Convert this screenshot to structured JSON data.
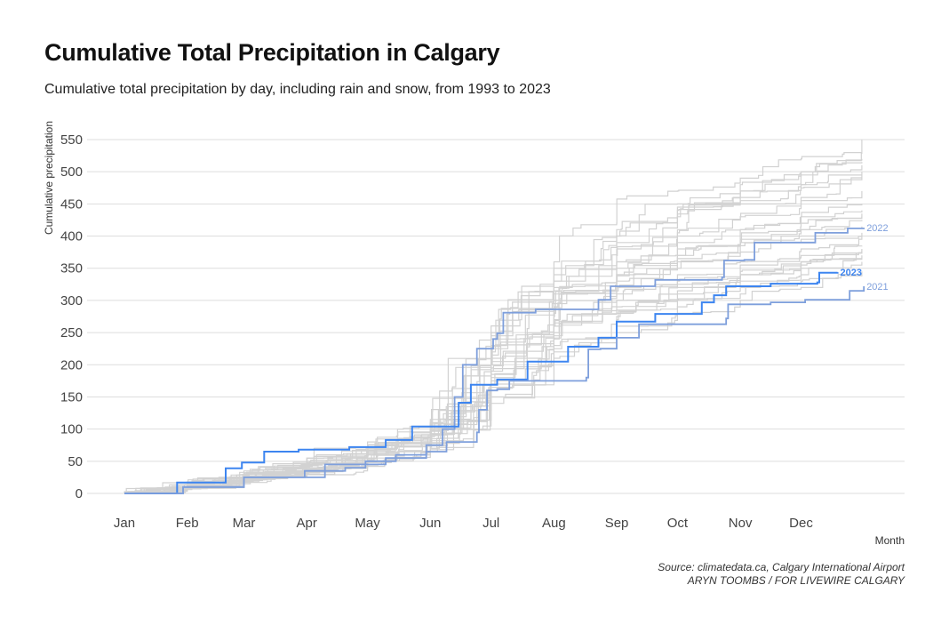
{
  "chart_data": {
    "type": "line",
    "title": "Cumulative Total Precipitation in Calgary",
    "subtitle": "Cumulative total precipitation by day, including rain and snow, from 1993 to 2023",
    "xlabel": "Month",
    "ylabel": "Cumulative precipitation",
    "x_unit": "day of year",
    "x_tick_labels": [
      "Jan",
      "Feb",
      "Mar",
      "Apr",
      "May",
      "Jun",
      "Jul",
      "Aug",
      "Sep",
      "Oct",
      "Nov",
      "Dec"
    ],
    "x_tick_days": [
      1,
      32,
      60,
      91,
      121,
      152,
      182,
      213,
      244,
      274,
      305,
      335
    ],
    "xlim": [
      1,
      366
    ],
    "ylim": [
      0,
      550
    ],
    "y_ticks": [
      0,
      50,
      100,
      150,
      200,
      250,
      300,
      350,
      400,
      450,
      500,
      550
    ],
    "grid": "horizontal",
    "legend": "direct labels at line ends",
    "colors": {
      "highlight_2023": "#3d85f0",
      "highlight_other": "#7e9fdc",
      "background_years": "#d2d2d2",
      "grid": "#dddddd"
    },
    "highlighted_series": [
      {
        "name": "2022",
        "points": [
          [
            1,
            0
          ],
          [
            30,
            10
          ],
          [
            60,
            25
          ],
          [
            90,
            35
          ],
          [
            110,
            40
          ],
          [
            120,
            50
          ],
          [
            135,
            60
          ],
          [
            150,
            75
          ],
          [
            158,
            100
          ],
          [
            164,
            150
          ],
          [
            168,
            200
          ],
          [
            175,
            225
          ],
          [
            183,
            240
          ],
          [
            185,
            249
          ],
          [
            188,
            281
          ],
          [
            204,
            286
          ],
          [
            235,
            301
          ],
          [
            241,
            322
          ],
          [
            263,
            332
          ],
          [
            296,
            336
          ],
          [
            297,
            362
          ],
          [
            307,
            363
          ],
          [
            312,
            390
          ],
          [
            336,
            390
          ],
          [
            342,
            405
          ],
          [
            358,
            412
          ],
          [
            366,
            413
          ]
        ]
      },
      {
        "name": "2023",
        "points": [
          [
            1,
            0
          ],
          [
            27,
            17
          ],
          [
            51,
            39
          ],
          [
            59,
            48
          ],
          [
            70,
            65
          ],
          [
            87,
            68
          ],
          [
            112,
            72
          ],
          [
            130,
            83
          ],
          [
            143,
            104
          ],
          [
            165,
            104
          ],
          [
            166,
            141
          ],
          [
            172,
            169
          ],
          [
            185,
            177
          ],
          [
            200,
            205
          ],
          [
            220,
            228
          ],
          [
            235,
            242
          ],
          [
            244,
            267
          ],
          [
            263,
            279
          ],
          [
            286,
            297
          ],
          [
            292,
            308
          ],
          [
            298,
            322
          ],
          [
            320,
            326
          ],
          [
            343,
            328
          ],
          [
            344,
            343
          ],
          [
            353,
            344
          ]
        ]
      },
      {
        "name": "2021",
        "points": [
          [
            1,
            0
          ],
          [
            30,
            10
          ],
          [
            60,
            25
          ],
          [
            100,
            45
          ],
          [
            130,
            55
          ],
          [
            150,
            65
          ],
          [
            160,
            80
          ],
          [
            175,
            95
          ],
          [
            176,
            130
          ],
          [
            180,
            160
          ],
          [
            185,
            162
          ],
          [
            191,
            175
          ],
          [
            229,
            180
          ],
          [
            230,
            224
          ],
          [
            236,
            225
          ],
          [
            244,
            242
          ],
          [
            255,
            263
          ],
          [
            298,
            272
          ],
          [
            299,
            294
          ],
          [
            320,
            297
          ],
          [
            337,
            301
          ],
          [
            359,
            315
          ],
          [
            366,
            322
          ]
        ]
      }
    ],
    "other_years_monthly_days": [
      1,
      32,
      60,
      91,
      121,
      152,
      182,
      213,
      244,
      274,
      305,
      335,
      365
    ],
    "other_years_monthly_values": [
      [
        0,
        12,
        25,
        40,
        60,
        90,
        200,
        300,
        380,
        430,
        460,
        480,
        500
      ],
      [
        0,
        8,
        20,
        35,
        55,
        80,
        150,
        260,
        320,
        380,
        410,
        430,
        450
      ],
      [
        0,
        15,
        30,
        45,
        70,
        100,
        230,
        330,
        400,
        450,
        480,
        500,
        520
      ],
      [
        0,
        10,
        22,
        38,
        50,
        75,
        180,
        240,
        280,
        300,
        320,
        340,
        360
      ],
      [
        0,
        18,
        35,
        55,
        80,
        110,
        260,
        360,
        420,
        470,
        490,
        520,
        550
      ],
      [
        0,
        6,
        15,
        30,
        45,
        70,
        140,
        220,
        270,
        300,
        330,
        350,
        380
      ],
      [
        0,
        12,
        28,
        45,
        65,
        95,
        210,
        280,
        340,
        370,
        390,
        410,
        425
      ],
      [
        0,
        9,
        20,
        32,
        48,
        70,
        160,
        210,
        250,
        280,
        300,
        320,
        340
      ],
      [
        0,
        14,
        30,
        50,
        75,
        115,
        250,
        320,
        360,
        400,
        430,
        460,
        490
      ],
      [
        0,
        11,
        24,
        38,
        55,
        85,
        190,
        270,
        310,
        340,
        360,
        380,
        400
      ],
      [
        0,
        7,
        18,
        30,
        42,
        65,
        170,
        230,
        260,
        290,
        310,
        330,
        345
      ],
      [
        0,
        16,
        32,
        48,
        70,
        105,
        240,
        340,
        400,
        440,
        470,
        500,
        530
      ],
      [
        0,
        10,
        26,
        42,
        60,
        90,
        220,
        290,
        330,
        360,
        390,
        410,
        430
      ],
      [
        0,
        13,
        27,
        40,
        58,
        88,
        200,
        300,
        350,
        390,
        410,
        430,
        440
      ],
      [
        0,
        9,
        22,
        36,
        52,
        78,
        175,
        250,
        300,
        330,
        355,
        370,
        385
      ],
      [
        0,
        12,
        25,
        44,
        68,
        100,
        230,
        310,
        360,
        410,
        450,
        480,
        510
      ],
      [
        0,
        8,
        19,
        33,
        50,
        72,
        165,
        240,
        290,
        320,
        340,
        360,
        375
      ],
      [
        0,
        15,
        30,
        47,
        66,
        98,
        215,
        295,
        340,
        370,
        395,
        420,
        435
      ],
      [
        0,
        10,
        23,
        37,
        54,
        82,
        190,
        260,
        300,
        325,
        345,
        360,
        370
      ],
      [
        0,
        11,
        26,
        41,
        63,
        92,
        205,
        330,
        390,
        430,
        455,
        475,
        495
      ],
      [
        0,
        14,
        29,
        46,
        72,
        108,
        245,
        350,
        410,
        445,
        470,
        495,
        515
      ],
      [
        0,
        7,
        17,
        29,
        44,
        68,
        150,
        225,
        275,
        310,
        335,
        355,
        365
      ],
      [
        0,
        12,
        27,
        43,
        61,
        93,
        195,
        275,
        330,
        365,
        385,
        400,
        415
      ],
      [
        0,
        10,
        21,
        35,
        51,
        79,
        185,
        265,
        315,
        350,
        375,
        395,
        405
      ],
      [
        0,
        13,
        28,
        45,
        67,
        97,
        225,
        315,
        370,
        405,
        430,
        455,
        470
      ],
      [
        0,
        9,
        20,
        34,
        49,
        74,
        170,
        245,
        285,
        315,
        340,
        360,
        378
      ]
    ]
  },
  "source": {
    "line1": "Source: climatedata.ca, Calgary International Airport",
    "line2": "ARYN TOOMBS / FOR LIVEWIRE CALGARY"
  }
}
